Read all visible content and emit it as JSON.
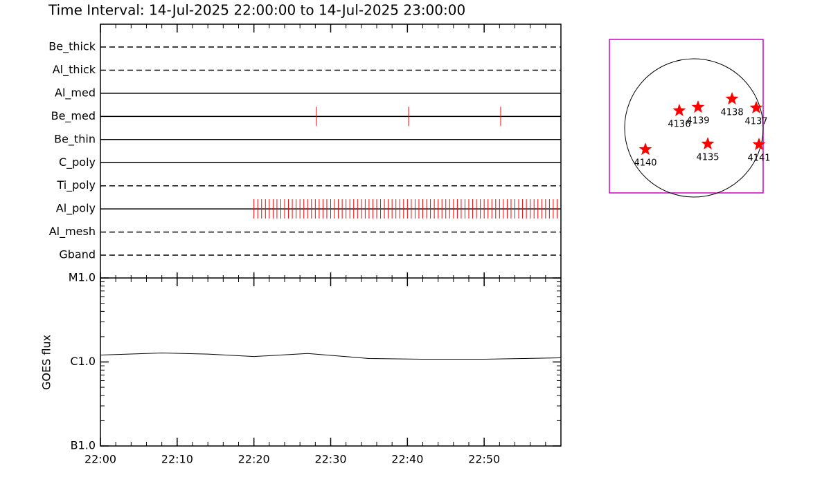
{
  "chart_data": [
    {
      "type": "timeline",
      "title": "Time Interval: 14-Jul-2025 22:00:00 to 14-Jul-2025 23:00:00",
      "xlim": [
        0,
        60
      ],
      "color": "#ff0000",
      "rows": [
        {
          "name": "Be_thick",
          "style": "dashed",
          "exposures": []
        },
        {
          "name": "Al_thick",
          "style": "dashed",
          "exposures": []
        },
        {
          "name": "Al_med",
          "style": "solid",
          "exposures": []
        },
        {
          "name": "Be_med",
          "style": "solid",
          "exposures": [
            28.15,
            40.15,
            52.15
          ]
        },
        {
          "name": "Be_thin",
          "style": "solid",
          "exposures": []
        },
        {
          "name": "C_poly",
          "style": "solid",
          "exposures": []
        },
        {
          "name": "Ti_poly",
          "style": "dashed",
          "exposures": []
        },
        {
          "name": "Al_poly",
          "style": "solid",
          "exposures": [
            20,
            20.5,
            21,
            21.5,
            22,
            22.5,
            23,
            23.5,
            24,
            24.5,
            25,
            25.5,
            26,
            26.5,
            27,
            27.5,
            28,
            28.5,
            29,
            29.5,
            30,
            30.5,
            31,
            31.5,
            32,
            32.5,
            33,
            33.5,
            34,
            34.5,
            35,
            35.5,
            36,
            36.5,
            37,
            37.5,
            38,
            38.5,
            39,
            39.5,
            40,
            40.5,
            41,
            41.5,
            42,
            42.5,
            43,
            43.5,
            44,
            44.5,
            45,
            45.5,
            46,
            46.5,
            47,
            47.5,
            48,
            48.5,
            49,
            49.5,
            50,
            50.5,
            51,
            51.5,
            52,
            52.5,
            53,
            53.5,
            54,
            54.5,
            55,
            55.5,
            56,
            56.5,
            57,
            57.5,
            58,
            58.5,
            59,
            59.5
          ]
        },
        {
          "name": "Al_mesh",
          "style": "dashed",
          "exposures": []
        },
        {
          "name": "Gband",
          "style": "dashed",
          "exposures": []
        }
      ]
    },
    {
      "type": "line",
      "ylabel": "GOES flux",
      "x": [
        0,
        8,
        14,
        20,
        27,
        35,
        42,
        50,
        60
      ],
      "values": [
        1.21e-06,
        1.28e-06,
        1.24e-06,
        1.16e-06,
        1.26e-06,
        1.1e-06,
        1.08e-06,
        1.08e-06,
        1.12e-06
      ],
      "color": "#000000",
      "ylog": true,
      "xlim": [
        0,
        60
      ],
      "ylim": [
        1e-07,
        1e-05
      ],
      "yticks": [
        {
          "value": 1e-07,
          "label": "B1.0"
        },
        {
          "value": 1e-06,
          "label": "C1.0"
        },
        {
          "value": 1e-05,
          "label": "M1.0"
        }
      ],
      "xticks": [
        {
          "value": 0,
          "label": "22:00"
        },
        {
          "value": 10,
          "label": "22:10"
        },
        {
          "value": 20,
          "label": "22:20"
        },
        {
          "value": 30,
          "label": "22:30"
        },
        {
          "value": 40,
          "label": "22:40"
        },
        {
          "value": 50,
          "label": "22:50"
        }
      ]
    },
    {
      "type": "scatter",
      "labels": [
        "4136",
        "4139",
        "4138",
        "4137",
        "4140",
        "4135",
        "4141"
      ],
      "x": [
        -200,
        57,
        523,
        855,
        -665,
        190,
        893
      ],
      "y": [
        238,
        285,
        399,
        276,
        -295,
        -219,
        -228
      ],
      "color": "#ff0000",
      "box_color": "#cc00cc",
      "sun_radius": 950,
      "xlim": [
        -1159,
        950
      ],
      "ylim": [
        -893,
        1216
      ]
    }
  ]
}
